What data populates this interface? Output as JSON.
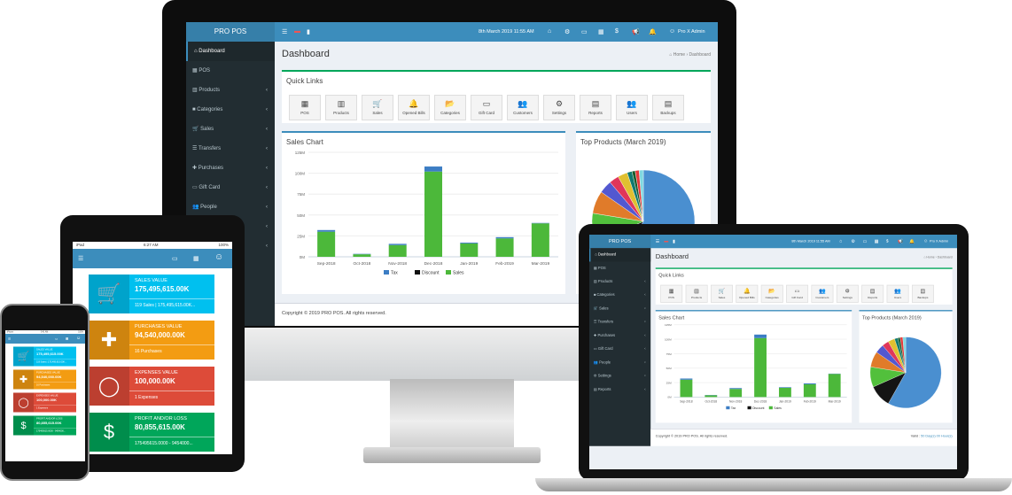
{
  "dashboard": {
    "brand": "PRO POS",
    "datetime": "8th March 2019 11:55 AM",
    "user": "Pro X Admin",
    "badges": {
      "sales": "1",
      "orders": "1",
      "alerts": "1"
    },
    "page_title": "Dashboard",
    "breadcrumb": {
      "home": "Home",
      "current": "Dashboard"
    },
    "sidebar": [
      {
        "label": "Dashboard",
        "icon": "dashboard-icon",
        "glyph": "⌂",
        "chev": false
      },
      {
        "label": "POS",
        "icon": "pos-icon",
        "glyph": "▦",
        "chev": false
      },
      {
        "label": "Products",
        "icon": "barcode-icon",
        "glyph": "▥",
        "chev": true
      },
      {
        "label": "Categories",
        "icon": "folder-icon",
        "glyph": "■",
        "chev": true
      },
      {
        "label": "Sales",
        "icon": "cart-icon",
        "glyph": "🛒",
        "chev": true
      },
      {
        "label": "Transfers",
        "icon": "transfer-icon",
        "glyph": "☰",
        "chev": true
      },
      {
        "label": "Purchases",
        "icon": "plus-icon",
        "glyph": "✚",
        "chev": true
      },
      {
        "label": "Gift Card",
        "icon": "credit-card-icon",
        "glyph": "▭",
        "chev": true
      },
      {
        "label": "People",
        "icon": "users-icon",
        "glyph": "👥",
        "chev": true
      },
      {
        "label": "Settings",
        "icon": "cogs-icon",
        "glyph": "⚙",
        "chev": true
      },
      {
        "label": "Reports",
        "icon": "chart-icon",
        "glyph": "▤",
        "chev": true
      }
    ],
    "quick_links_title": "Quick Links",
    "quick_links": [
      {
        "label": "POS",
        "icon": "pos-icon",
        "glyph": "▦"
      },
      {
        "label": "Products",
        "icon": "barcode-icon",
        "glyph": "▥"
      },
      {
        "label": "Sales",
        "icon": "cart-icon",
        "glyph": "🛒"
      },
      {
        "label": "Opened Bills",
        "icon": "bell-icon",
        "glyph": "🔔"
      },
      {
        "label": "Categories",
        "icon": "folder-icon",
        "glyph": "📂"
      },
      {
        "label": "Gift Card",
        "icon": "credit-card-icon",
        "glyph": "▭"
      },
      {
        "label": "Customers",
        "icon": "users-icon",
        "glyph": "👥"
      },
      {
        "label": "Settings",
        "icon": "cogs-icon",
        "glyph": "⚙"
      },
      {
        "label": "Reports",
        "icon": "chart-icon",
        "glyph": "▤"
      },
      {
        "label": "Users",
        "icon": "users-icon",
        "glyph": "👥"
      },
      {
        "label": "Backups",
        "icon": "database-icon",
        "glyph": "▤"
      }
    ],
    "sales_chart_title": "Sales Chart",
    "top_products_title": "Top Products (March 2019)",
    "footer": "Copyright © 2019 PRO POS. All rights reserved.",
    "valid_label": "Valid :",
    "valid_value": "50 Day(s) 00 Hour(s)"
  },
  "chart_data": [
    {
      "type": "bar",
      "stacked": true,
      "title": "Sales Chart",
      "categories": [
        "Sep-2018",
        "Oct-2018",
        "Nov-2018",
        "Dec-2018",
        "Jan-2019",
        "Feb-2019",
        "Mar-2019"
      ],
      "series": [
        {
          "name": "Sales",
          "color": "#4cb83a",
          "values": [
            30,
            3,
            14,
            102,
            16,
            22,
            40
          ]
        },
        {
          "name": "Discount",
          "color": "#111111",
          "values": [
            0,
            0,
            0,
            0,
            0,
            0,
            0
          ]
        },
        {
          "name": "Tax",
          "color": "#3c7dc4",
          "values": [
            2,
            0.5,
            1.5,
            6,
            1,
            1.5,
            0.5
          ]
        }
      ],
      "yticks": [
        "0M",
        "25M",
        "50M",
        "75M",
        "100M",
        "125M"
      ],
      "ylim": [
        0,
        125
      ],
      "grid": true,
      "legend": "bottom",
      "legend_order": [
        "Tax",
        "Discount",
        "Sales"
      ]
    },
    {
      "type": "pie",
      "title": "Top Products (March 2019)",
      "values": [
        57,
        10,
        9,
        7,
        4,
        3,
        3,
        1.5,
        1,
        1.2,
        1.3
      ],
      "colors": [
        "#4a8fd0",
        "#141414",
        "#52c03c",
        "#e07b2a",
        "#5358d0",
        "#e0365a",
        "#e0c030",
        "#0f7a70",
        "#1a5a2a",
        "#e63a3a",
        "#7fd8e0"
      ]
    }
  ],
  "tablet": {
    "status": {
      "carrier": "iPad",
      "time": "6:27 AM",
      "battery": "100%"
    },
    "cards": [
      {
        "label": "SALES VALUE",
        "value": "175,495,615.00K",
        "sub": "119 Sales | 175,495,615.00K...",
        "color": "#00c0ef",
        "icon": "cart-icon",
        "glyph": "🛒"
      },
      {
        "label": "PURCHASES VALUE",
        "value": "94,540,000.00K",
        "sub": "16 Purchases",
        "color": "#f39c12",
        "icon": "plus-icon",
        "glyph": "✚"
      },
      {
        "label": "EXPENSES VALUE",
        "value": "100,000.00K",
        "sub": "1 Expenses",
        "color": "#dd4b39",
        "icon": "circle-icon",
        "glyph": "◯"
      },
      {
        "label": "PROFIT AND/OR LOSS",
        "value": "80,855,615.00K",
        "sub": "175495615.0000 - 9454000...",
        "color": "#00a65a",
        "icon": "dollar-icon",
        "glyph": "$"
      }
    ]
  },
  "phone": {
    "status": {
      "carrier": "iPhone",
      "time": "9:41 AM",
      "battery": "100%"
    },
    "cards": [
      {
        "label": "SALES VALUE",
        "value": "175,495,615.00K",
        "sub": "119 Sales | 175,495,615.00K..."
      },
      {
        "label": "PURCHASES VALUE",
        "value": "94,540,000.00K",
        "sub": "16 Purchases"
      },
      {
        "label": "EXPENSES VALUE",
        "value": "100,000.00K",
        "sub": "1 Expenses"
      },
      {
        "label": "PROFIT AND/OR LOSS",
        "value": "80,855,615.00K",
        "sub": "175495615.0000 - 9454000..."
      }
    ]
  }
}
